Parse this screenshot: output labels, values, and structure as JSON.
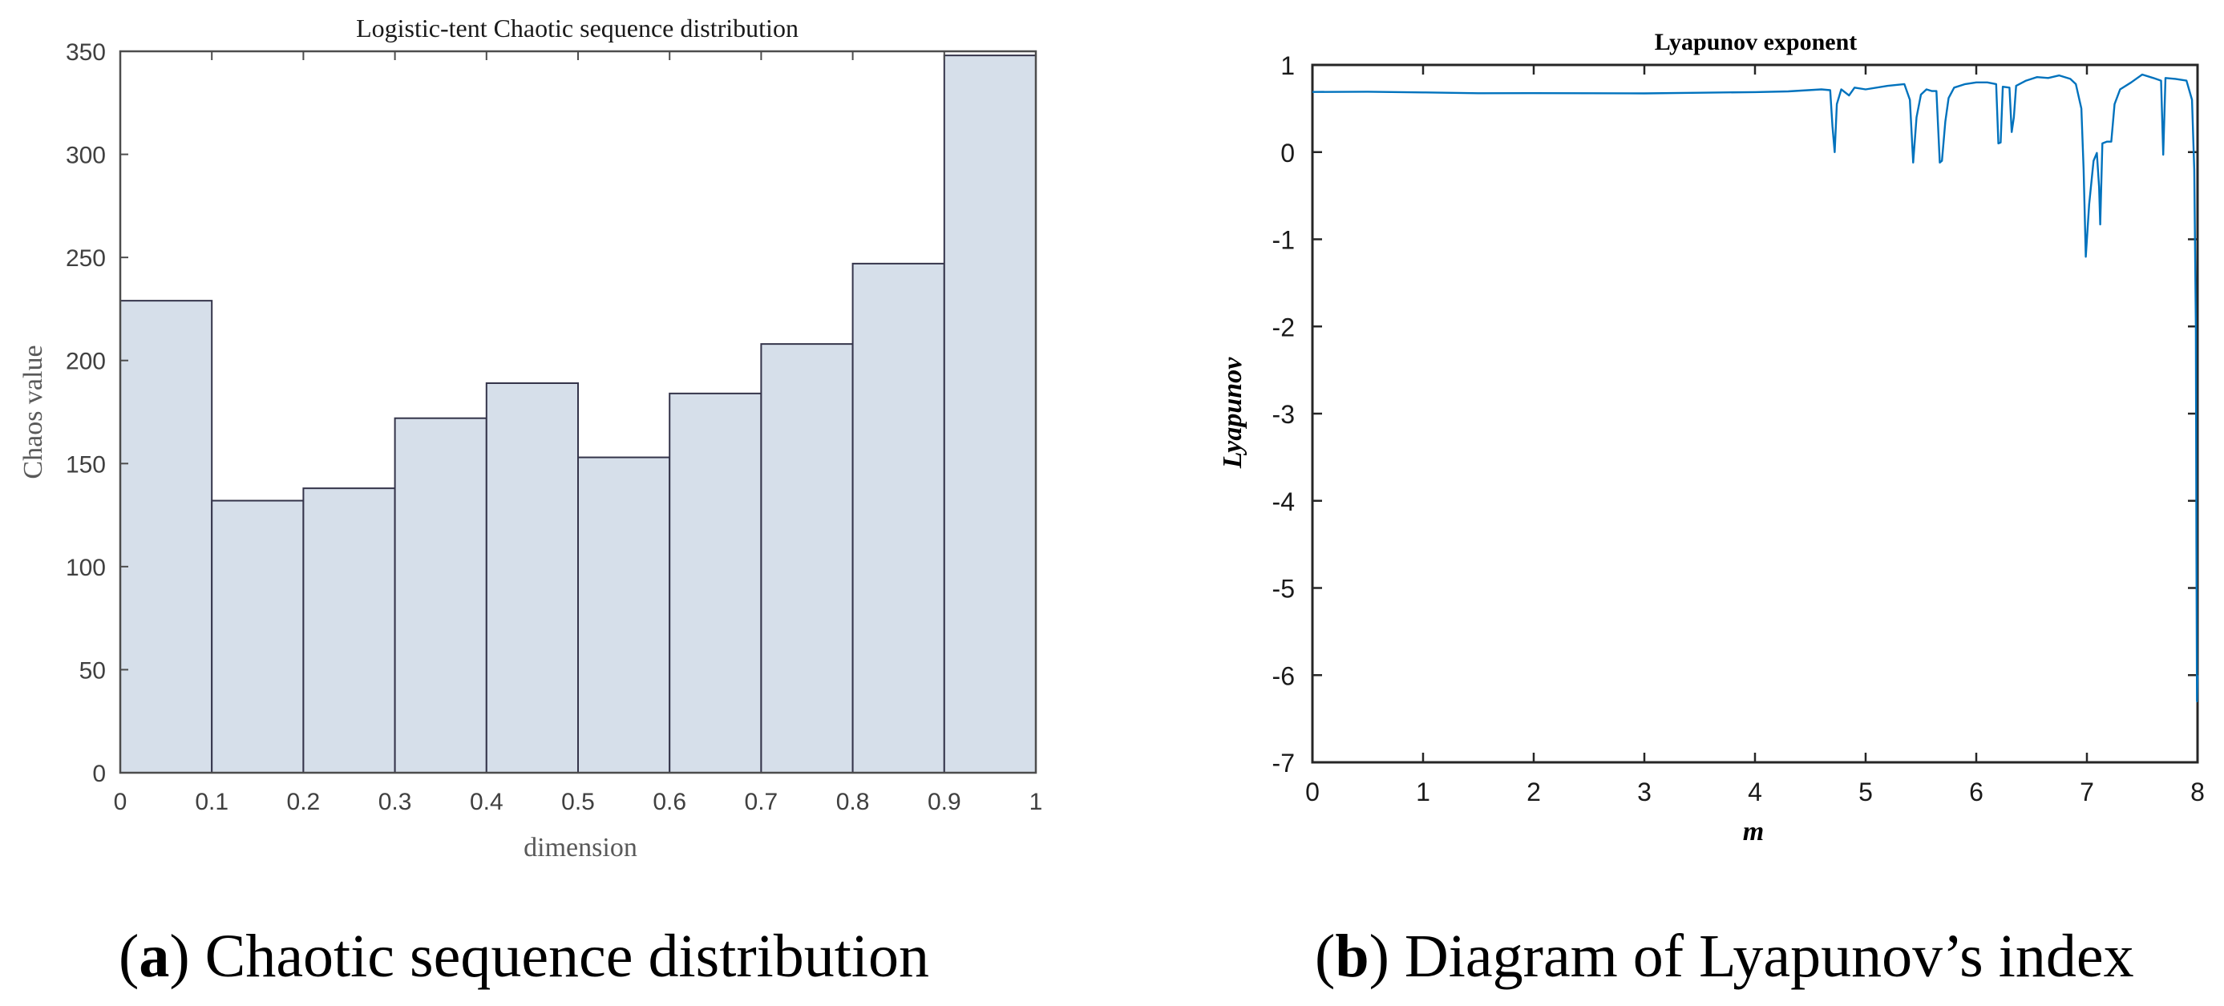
{
  "figure_a": {
    "caption_letter": "a",
    "caption_text": "Chaotic sequence distribution"
  },
  "figure_b": {
    "caption_letter": "b",
    "caption_text": "Diagram of Lyapunov’s index"
  },
  "colors": {
    "bar_fill": "#d6dfea",
    "bar_edge": "#34344a",
    "axis_a": "#4d4d4d",
    "tick_text_a": "#404040",
    "label_text_a": "#595959",
    "line_b": "#0072bd",
    "axis_b": "#262626"
  },
  "chart_data": [
    {
      "type": "bar",
      "title": "Logistic-tent Chaotic sequence distribution",
      "xlabel": "dimension",
      "ylabel": "Chaos value",
      "bin_edges": [
        0,
        0.1,
        0.2,
        0.3,
        0.4,
        0.5,
        0.6,
        0.7,
        0.8,
        0.9,
        1.0
      ],
      "categories": [
        "0-0.1",
        "0.1-0.2",
        "0.2-0.3",
        "0.3-0.4",
        "0.4-0.5",
        "0.5-0.6",
        "0.6-0.7",
        "0.7-0.8",
        "0.8-0.9",
        "0.9-1"
      ],
      "values": [
        229,
        132,
        138,
        172,
        189,
        153,
        184,
        208,
        247,
        348
      ],
      "xlim": [
        0,
        1
      ],
      "ylim": [
        0,
        350
      ],
      "xticks": [
        "0",
        "0.1",
        "0.2",
        "0.3",
        "0.4",
        "0.5",
        "0.6",
        "0.7",
        "0.8",
        "0.9",
        "1"
      ],
      "yticks": [
        "0",
        "50",
        "100",
        "150",
        "200",
        "250",
        "300",
        "350"
      ],
      "grid": false,
      "legend": null
    },
    {
      "type": "line",
      "title": "Lyapunov exponent",
      "xlabel": "m",
      "ylabel": "Lyapunov",
      "xlim": [
        0,
        8
      ],
      "ylim": [
        -7,
        1
      ],
      "xticks": [
        "0",
        "1",
        "2",
        "3",
        "4",
        "5",
        "6",
        "7",
        "8"
      ],
      "yticks": [
        "1",
        "0",
        "-1",
        "-2",
        "-3",
        "-4",
        "-5",
        "-6",
        "-7"
      ],
      "grid": false,
      "legend": null,
      "series": [
        {
          "name": "Lyapunov exponent",
          "x": [
            0,
            0.5,
            1.0,
            1.5,
            2.0,
            2.5,
            3.0,
            3.5,
            4.0,
            4.3,
            4.6,
            4.68,
            4.7,
            4.72,
            4.74,
            4.78,
            4.85,
            4.9,
            5.0,
            5.2,
            5.35,
            5.4,
            5.43,
            5.46,
            5.5,
            5.55,
            5.6,
            5.64,
            5.67,
            5.69,
            5.72,
            5.75,
            5.8,
            5.9,
            6.0,
            6.1,
            6.18,
            6.2,
            6.22,
            6.24,
            6.3,
            6.32,
            6.34,
            6.36,
            6.45,
            6.55,
            6.65,
            6.75,
            6.85,
            6.9,
            6.95,
            6.97,
            6.99,
            7.02,
            7.06,
            7.09,
            7.11,
            7.12,
            7.14,
            7.18,
            7.22,
            7.25,
            7.3,
            7.4,
            7.5,
            7.6,
            7.67,
            7.69,
            7.71,
            7.8,
            7.9,
            7.95,
            7.97,
            7.985,
            7.99,
            7.995,
            8.0
          ],
          "y": [
            0.69,
            0.69,
            0.68,
            0.67,
            0.67,
            0.67,
            0.67,
            0.68,
            0.69,
            0.7,
            0.72,
            0.71,
            0.3,
            0.0,
            0.55,
            0.72,
            0.65,
            0.74,
            0.72,
            0.76,
            0.78,
            0.6,
            -0.12,
            0.4,
            0.66,
            0.72,
            0.7,
            0.7,
            -0.12,
            -0.1,
            0.35,
            0.62,
            0.74,
            0.78,
            0.8,
            0.8,
            0.78,
            0.1,
            0.11,
            0.75,
            0.74,
            0.23,
            0.4,
            0.76,
            0.82,
            0.86,
            0.85,
            0.88,
            0.84,
            0.78,
            0.5,
            -0.2,
            -1.2,
            -0.6,
            -0.1,
            -0.01,
            -0.4,
            -0.83,
            0.1,
            0.12,
            0.12,
            0.55,
            0.72,
            0.8,
            0.89,
            0.85,
            0.82,
            -0.03,
            0.85,
            0.84,
            0.82,
            0.6,
            -0.2,
            -2.0,
            -4.5,
            -6.3,
            -6.0
          ]
        }
      ]
    }
  ]
}
